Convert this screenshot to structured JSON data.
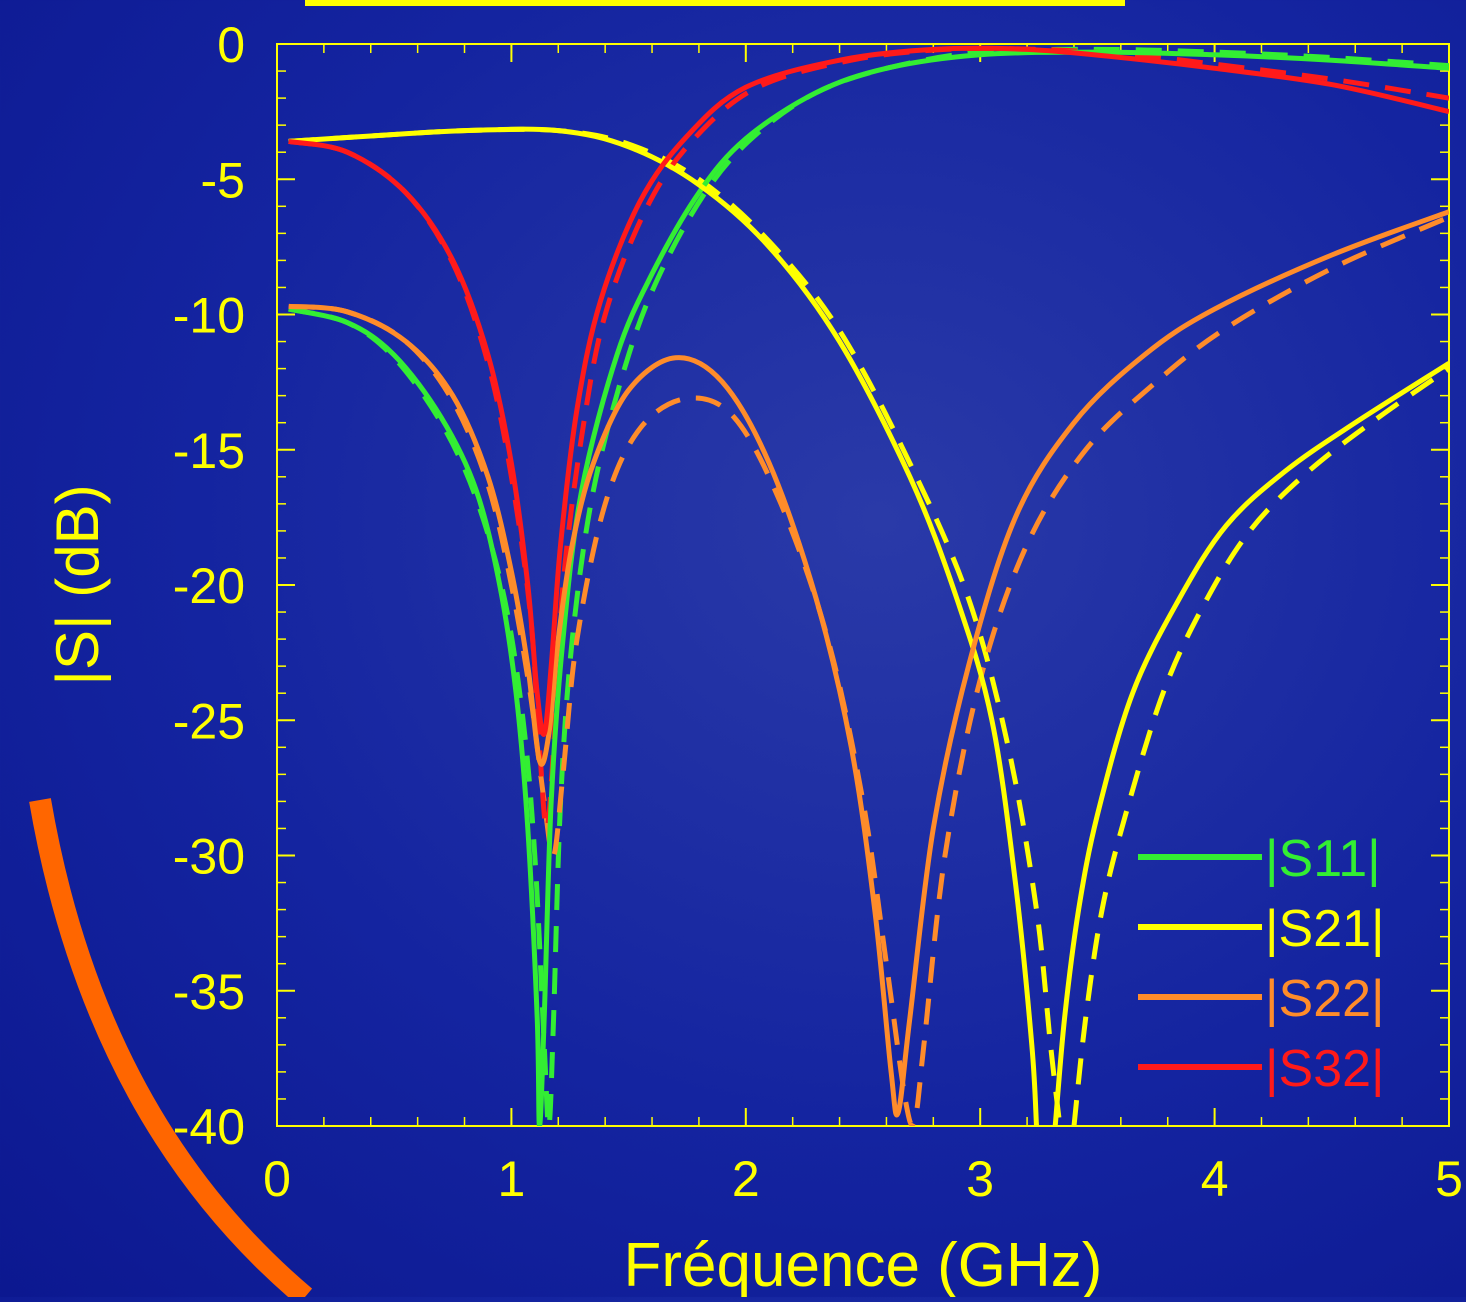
{
  "theme": {
    "background": "#1628a0",
    "axis_color": "#ffff00",
    "label_color": "#ffff00",
    "arc_color": "#ff6600"
  },
  "chart_data": {
    "type": "line",
    "xlabel": "Fréquence (GHz)",
    "ylabel": "|S| (dB)",
    "xlim": [
      0,
      5
    ],
    "ylim": [
      -40,
      0
    ],
    "x_ticks": [
      "0",
      "1",
      "2",
      "3",
      "4",
      "5"
    ],
    "y_ticks": [
      "0",
      "-5",
      "-10",
      "-15",
      "-20",
      "-25",
      "-30",
      "-35",
      "-40"
    ],
    "grid": false,
    "legend_position": "bottom-right",
    "legend": [
      {
        "label": "|S11|",
        "color": "#33ee33"
      },
      {
        "label": "|S21|",
        "color": "#ffff00"
      },
      {
        "label": "|S22|",
        "color": "#ff8c2a"
      },
      {
        "label": "|S32|",
        "color": "#ff1a1a"
      }
    ],
    "series": [
      {
        "name": "|S11|",
        "style": "solid",
        "color": "#33ee33",
        "x": [
          0.05,
          0.3,
          0.5,
          0.7,
          0.85,
          0.95,
          1.02,
          1.07,
          1.11,
          1.12,
          1.14,
          1.17,
          1.22,
          1.3,
          1.45,
          1.6,
          1.8,
          2.0,
          2.3,
          2.6,
          3.0,
          3.5,
          4.0,
          4.5,
          5.0
        ],
        "y": [
          -9.8,
          -10.3,
          -11.5,
          -13.8,
          -16.5,
          -20,
          -24,
          -29,
          -36,
          -40,
          -36,
          -28,
          -22,
          -16.5,
          -11.5,
          -8.5,
          -5.5,
          -3.5,
          -1.8,
          -0.9,
          -0.4,
          -0.3,
          -0.4,
          -0.6,
          -0.9
        ]
      },
      {
        "name": "|S11|",
        "style": "dashed",
        "color": "#33ee33",
        "x": [
          0.05,
          0.3,
          0.5,
          0.7,
          0.85,
          0.97,
          1.05,
          1.1,
          1.14,
          1.16,
          1.18,
          1.21,
          1.26,
          1.35,
          1.5,
          1.65,
          1.85,
          2.05,
          2.3,
          2.6,
          3.0,
          3.5,
          4.0,
          4.5,
          5.0
        ],
        "y": [
          -9.8,
          -10.3,
          -11.6,
          -14.0,
          -16.8,
          -20.5,
          -25,
          -30,
          -37,
          -40,
          -36,
          -28,
          -22,
          -16.5,
          -11.5,
          -8.2,
          -5.2,
          -3.3,
          -1.8,
          -0.9,
          -0.3,
          -0.2,
          -0.3,
          -0.5,
          -0.8
        ]
      },
      {
        "name": "|S21|",
        "style": "solid",
        "color": "#ffff00",
        "x": [
          0.05,
          0.4,
          0.8,
          1.2,
          1.5,
          1.8,
          2.1,
          2.4,
          2.7,
          2.9,
          3.05,
          3.15,
          3.22,
          3.24
        ],
        "y": [
          -3.6,
          -3.4,
          -3.2,
          -3.2,
          -3.8,
          -5.2,
          -7.5,
          -11,
          -16,
          -20.5,
          -25,
          -31,
          -37,
          -40
        ]
      },
      {
        "name": "|S21|",
        "style": "solid",
        "color": "#ffff00",
        "x": [
          3.32,
          3.36,
          3.42,
          3.5,
          3.65,
          3.85,
          4.05,
          4.3,
          4.6,
          5.0
        ],
        "y": [
          -40,
          -36,
          -32,
          -28.5,
          -24,
          -20.5,
          -17.8,
          -15.8,
          -14,
          -11.8
        ]
      },
      {
        "name": "|S21|",
        "style": "dashed",
        "color": "#ffff00",
        "x": [
          0.05,
          0.4,
          0.8,
          1.2,
          1.5,
          1.8,
          2.1,
          2.4,
          2.7,
          2.95,
          3.12,
          3.24,
          3.3,
          3.34
        ],
        "y": [
          -3.6,
          -3.4,
          -3.2,
          -3.2,
          -3.7,
          -5.0,
          -7.3,
          -10.6,
          -15.5,
          -20.5,
          -26,
          -32,
          -37,
          -40
        ]
      },
      {
        "name": "|S21|",
        "style": "dashed",
        "color": "#ffff00",
        "x": [
          3.4,
          3.45,
          3.52,
          3.62,
          3.78,
          3.95,
          4.15,
          4.4,
          4.7,
          5.0
        ],
        "y": [
          -40,
          -36,
          -32,
          -28.5,
          -24,
          -20.8,
          -18,
          -15.8,
          -13.8,
          -12
        ]
      },
      {
        "name": "|S22|",
        "style": "solid",
        "color": "#ff8c2a",
        "x": [
          0.05,
          0.3,
          0.55,
          0.75,
          0.9,
          1.0,
          1.07,
          1.12,
          1.16,
          1.2,
          1.26,
          1.35,
          1.5,
          1.7,
          1.9,
          2.1,
          2.3,
          2.45,
          2.55,
          2.62,
          2.65,
          2.7,
          2.8,
          2.95,
          3.15,
          3.4,
          3.7,
          4.0,
          4.5,
          5.0
        ],
        "y": [
          -9.7,
          -9.9,
          -11,
          -13,
          -16,
          -19.5,
          -23,
          -26.5,
          -25.5,
          -22,
          -18.5,
          -15.5,
          -12.8,
          -11.6,
          -12.5,
          -15.5,
          -20.5,
          -26,
          -32,
          -38,
          -39.5,
          -36,
          -29,
          -23,
          -17.5,
          -14,
          -11.5,
          -9.8,
          -7.8,
          -6.2
        ]
      },
      {
        "name": "|S22|",
        "style": "dashed",
        "color": "#ff8c2a",
        "x": [
          0.05,
          0.3,
          0.55,
          0.75,
          0.9,
          1.0,
          1.08,
          1.14,
          1.18,
          1.22,
          1.28,
          1.4,
          1.55,
          1.75,
          1.95,
          2.15,
          2.35,
          2.5,
          2.6,
          2.68,
          2.72,
          2.76,
          2.85,
          3.0,
          3.2,
          3.45,
          3.75,
          4.05,
          4.5,
          5.0
        ],
        "y": [
          -9.7,
          -9.9,
          -11,
          -13.2,
          -16.3,
          -20,
          -24,
          -28,
          -30,
          -27,
          -22,
          -17,
          -14.2,
          -13.1,
          -13.8,
          -17,
          -22,
          -28,
          -34,
          -39,
          -39.8,
          -37,
          -30,
          -23.5,
          -18.5,
          -15,
          -12.5,
          -10.5,
          -8.3,
          -6.4
        ]
      },
      {
        "name": "|S32|",
        "style": "solid",
        "color": "#ff1a1a",
        "x": [
          0.05,
          0.3,
          0.55,
          0.75,
          0.9,
          1.0,
          1.07,
          1.11,
          1.14,
          1.17,
          1.21,
          1.28,
          1.38,
          1.55,
          1.75,
          2.0,
          2.4,
          2.8,
          3.2,
          3.6,
          4.0,
          4.5,
          5.0
        ],
        "y": [
          -3.6,
          -4.0,
          -5.5,
          -8.0,
          -11.5,
          -15.5,
          -20,
          -24,
          -25.5,
          -23,
          -18.5,
          -13.5,
          -9.5,
          -5.8,
          -3.4,
          -1.6,
          -0.6,
          -0.2,
          -0.2,
          -0.5,
          -0.9,
          -1.5,
          -2.5
        ]
      },
      {
        "name": "|S32|",
        "style": "dashed",
        "color": "#ff1a1a",
        "x": [
          0.05,
          0.3,
          0.55,
          0.75,
          0.9,
          1.0,
          1.08,
          1.12,
          1.15,
          1.18,
          1.22,
          1.3,
          1.4,
          1.58,
          1.78,
          2.05,
          2.45,
          2.85,
          3.25,
          3.65,
          4.05,
          4.5,
          5.0
        ],
        "y": [
          -3.6,
          -4.0,
          -5.5,
          -8.1,
          -11.8,
          -16,
          -21,
          -26,
          -29,
          -26,
          -20,
          -14.5,
          -10,
          -6,
          -3.5,
          -1.6,
          -0.6,
          -0.2,
          -0.2,
          -0.4,
          -0.8,
          -1.3,
          -2.0
        ]
      }
    ]
  }
}
